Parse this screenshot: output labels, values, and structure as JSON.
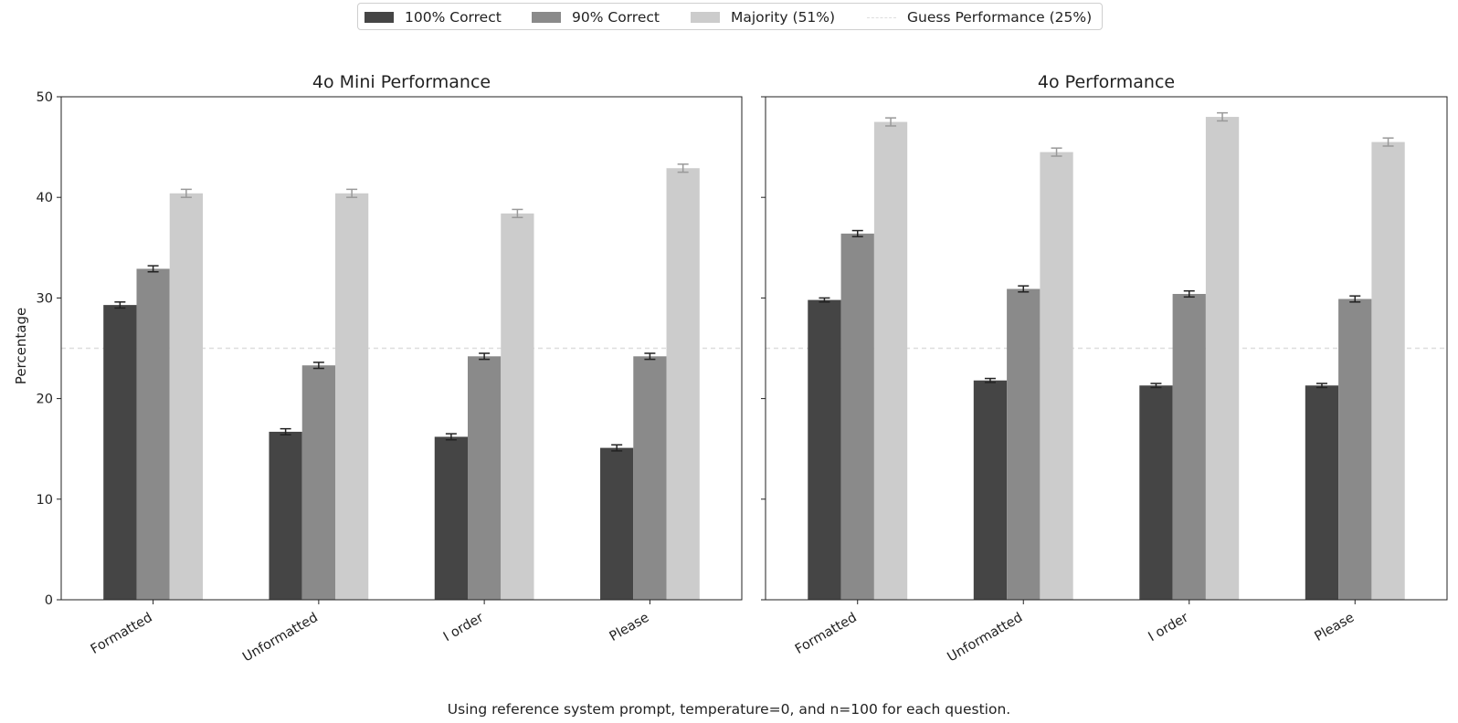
{
  "legend": {
    "items": [
      {
        "label": "100% Correct",
        "color": "#454545",
        "style": "box"
      },
      {
        "label": "90% Correct",
        "color": "#8a8a8a",
        "style": "box"
      },
      {
        "label": "Majority (51%)",
        "color": "#cccccc",
        "style": "box"
      },
      {
        "label": "Guess Performance (25%)",
        "color": "#dddddd",
        "style": "dashed-line"
      }
    ]
  },
  "caption": "Using reference system prompt, temperature=0, and n=100 for each question.",
  "chart_data": [
    {
      "type": "bar",
      "title": "4o Mini Performance",
      "ylabel": "Percentage",
      "xlabel": "",
      "ylim": [
        0,
        50
      ],
      "yticks": [
        0,
        10,
        20,
        30,
        40,
        50
      ],
      "categories": [
        "Formatted",
        "Unformatted",
        "I order",
        "Please"
      ],
      "series": [
        {
          "name": "100% Correct",
          "color": "#454545",
          "values": [
            29.3,
            16.7,
            16.2,
            15.1
          ],
          "errors": [
            0.3,
            0.3,
            0.3,
            0.3
          ]
        },
        {
          "name": "90% Correct",
          "color": "#8a8a8a",
          "values": [
            32.9,
            23.3,
            24.2,
            24.2
          ],
          "errors": [
            0.3,
            0.3,
            0.3,
            0.3
          ]
        },
        {
          "name": "Majority (51%)",
          "color": "#cccccc",
          "values": [
            40.4,
            40.4,
            38.4,
            42.9
          ],
          "errors": [
            0.4,
            0.4,
            0.4,
            0.4
          ]
        }
      ],
      "reference_line": {
        "name": "Guess Performance (25%)",
        "value": 25
      },
      "grid": false
    },
    {
      "type": "bar",
      "title": "4o Performance",
      "ylabel": "",
      "xlabel": "",
      "ylim": [
        0,
        50
      ],
      "yticks": [
        0,
        10,
        20,
        30,
        40,
        50
      ],
      "categories": [
        "Formatted",
        "Unformatted",
        "I order",
        "Please"
      ],
      "series": [
        {
          "name": "100% Correct",
          "color": "#454545",
          "values": [
            29.8,
            21.8,
            21.3,
            21.3
          ],
          "errors": [
            0.2,
            0.2,
            0.2,
            0.2
          ]
        },
        {
          "name": "90% Correct",
          "color": "#8a8a8a",
          "values": [
            36.4,
            30.9,
            30.4,
            29.9
          ],
          "errors": [
            0.3,
            0.3,
            0.3,
            0.3
          ]
        },
        {
          "name": "Majority (51%)",
          "color": "#cccccc",
          "values": [
            47.5,
            44.5,
            48.0,
            45.5
          ],
          "errors": [
            0.4,
            0.4,
            0.4,
            0.4
          ]
        }
      ],
      "reference_line": {
        "name": "Guess Performance (25%)",
        "value": 25
      },
      "grid": false
    }
  ]
}
